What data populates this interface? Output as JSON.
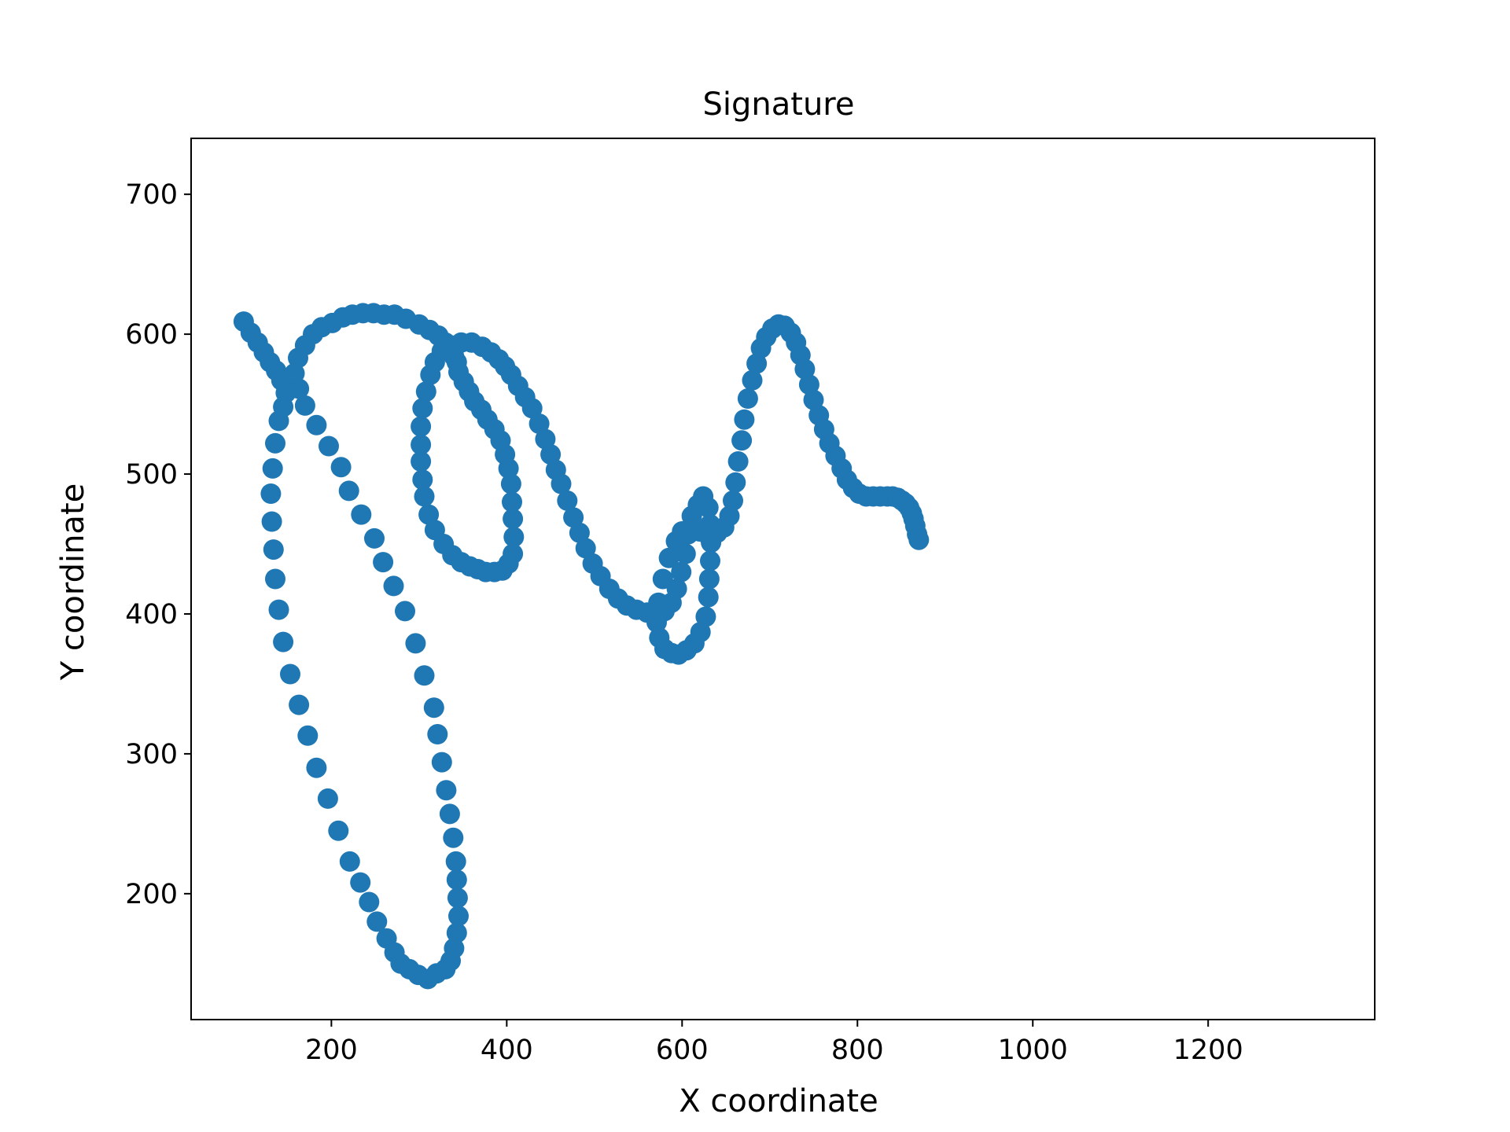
{
  "chart_data": {
    "type": "scatter",
    "title": "Signature",
    "xlabel": "X coordinate",
    "ylabel": "Y coordinate",
    "xlim": [
      40,
      1390
    ],
    "ylim": [
      110,
      740
    ],
    "grid": false,
    "x_ticks": [
      200,
      400,
      600,
      800,
      1000,
      1200
    ],
    "y_ticks": [
      200,
      300,
      400,
      500,
      600,
      700
    ],
    "series": [
      {
        "color": "#1f77b4",
        "points": [
          [
            100,
            609
          ],
          [
            108,
            601
          ],
          [
            116,
            594
          ],
          [
            123,
            587
          ],
          [
            130,
            580
          ],
          [
            137,
            574
          ],
          [
            143,
            567
          ],
          [
            148,
            558
          ],
          [
            145,
            548
          ],
          [
            140,
            538
          ],
          [
            136,
            522
          ],
          [
            133,
            504
          ],
          [
            131,
            486
          ],
          [
            132,
            466
          ],
          [
            134,
            446
          ],
          [
            136,
            425
          ],
          [
            140,
            403
          ],
          [
            145,
            380
          ],
          [
            153,
            357
          ],
          [
            163,
            335
          ],
          [
            173,
            313
          ],
          [
            183,
            290
          ],
          [
            196,
            268
          ],
          [
            208,
            245
          ],
          [
            221,
            223
          ],
          [
            233,
            208
          ],
          [
            243,
            194
          ],
          [
            252,
            180
          ],
          [
            263,
            168
          ],
          [
            272,
            158
          ],
          [
            279,
            150
          ],
          [
            289,
            146
          ],
          [
            299,
            142
          ],
          [
            310,
            139
          ],
          [
            320,
            143
          ],
          [
            330,
            146
          ],
          [
            336,
            152
          ],
          [
            340,
            161
          ],
          [
            343,
            172
          ],
          [
            345,
            184
          ],
          [
            344,
            197
          ],
          [
            343,
            210
          ],
          [
            342,
            223
          ],
          [
            339,
            240
          ],
          [
            335,
            257
          ],
          [
            331,
            274
          ],
          [
            326,
            294
          ],
          [
            321,
            314
          ],
          [
            317,
            333
          ],
          [
            306,
            356
          ],
          [
            296,
            379
          ],
          [
            284,
            402
          ],
          [
            271,
            420
          ],
          [
            259,
            437
          ],
          [
            249,
            454
          ],
          [
            234,
            471
          ],
          [
            220,
            488
          ],
          [
            211,
            505
          ],
          [
            197,
            520
          ],
          [
            183,
            535
          ],
          [
            170,
            549
          ],
          [
            163,
            561
          ],
          [
            158,
            572
          ],
          [
            162,
            583
          ],
          [
            170,
            592
          ],
          [
            179,
            600
          ],
          [
            189,
            605
          ],
          [
            201,
            608
          ],
          [
            213,
            612
          ],
          [
            224,
            614
          ],
          [
            236,
            615
          ],
          [
            248,
            615
          ],
          [
            260,
            614
          ],
          [
            272,
            614
          ],
          [
            285,
            611
          ],
          [
            300,
            607
          ],
          [
            312,
            603
          ],
          [
            322,
            599
          ],
          [
            330,
            594
          ],
          [
            336,
            589
          ],
          [
            340,
            584
          ],
          [
            343,
            580
          ],
          [
            345,
            573
          ],
          [
            351,
            566
          ],
          [
            357,
            559
          ],
          [
            363,
            552
          ],
          [
            371,
            546
          ],
          [
            378,
            539
          ],
          [
            386,
            532
          ],
          [
            393,
            524
          ],
          [
            398,
            514
          ],
          [
            402,
            504
          ],
          [
            405,
            493
          ],
          [
            406,
            480
          ],
          [
            407,
            468
          ],
          [
            408,
            455
          ],
          [
            407,
            443
          ],
          [
            402,
            436
          ],
          [
            395,
            431
          ],
          [
            386,
            430
          ],
          [
            376,
            430
          ],
          [
            367,
            432
          ],
          [
            358,
            434
          ],
          [
            348,
            437
          ],
          [
            338,
            442
          ],
          [
            328,
            450
          ],
          [
            318,
            460
          ],
          [
            311,
            471
          ],
          [
            306,
            484
          ],
          [
            304,
            496
          ],
          [
            302,
            509
          ],
          [
            302,
            521
          ],
          [
            302,
            534
          ],
          [
            304,
            547
          ],
          [
            308,
            559
          ],
          [
            313,
            571
          ],
          [
            318,
            580
          ],
          [
            326,
            588
          ],
          [
            336,
            592
          ],
          [
            348,
            594
          ],
          [
            360,
            594
          ],
          [
            372,
            591
          ],
          [
            382,
            587
          ],
          [
            391,
            582
          ],
          [
            398,
            577
          ],
          [
            405,
            571
          ],
          [
            413,
            563
          ],
          [
            421,
            555
          ],
          [
            429,
            547
          ],
          [
            437,
            536
          ],
          [
            444,
            525
          ],
          [
            450,
            514
          ],
          [
            456,
            503
          ],
          [
            462,
            493
          ],
          [
            469,
            481
          ],
          [
            476,
            469
          ],
          [
            483,
            458
          ],
          [
            490,
            447
          ],
          [
            498,
            436
          ],
          [
            507,
            427
          ],
          [
            517,
            418
          ],
          [
            527,
            411
          ],
          [
            537,
            406
          ],
          [
            548,
            403
          ],
          [
            560,
            401
          ],
          [
            570,
            400
          ],
          [
            580,
            402
          ],
          [
            588,
            408
          ],
          [
            594,
            418
          ],
          [
            599,
            430
          ],
          [
            604,
            443
          ],
          [
            607,
            457
          ],
          [
            611,
            470
          ],
          [
            618,
            478
          ],
          [
            624,
            484
          ],
          [
            630,
            476
          ],
          [
            632,
            464
          ],
          [
            633,
            451
          ],
          [
            632,
            438
          ],
          [
            631,
            425
          ],
          [
            630,
            412
          ],
          [
            627,
            398
          ],
          [
            621,
            387
          ],
          [
            614,
            379
          ],
          [
            605,
            374
          ],
          [
            596,
            371
          ],
          [
            588,
            372
          ],
          [
            580,
            375
          ],
          [
            574,
            383
          ],
          [
            571,
            394
          ],
          [
            573,
            408
          ],
          [
            578,
            425
          ],
          [
            585,
            440
          ],
          [
            593,
            452
          ],
          [
            600,
            459
          ],
          [
            609,
            461
          ],
          [
            620,
            459
          ],
          [
            630,
            456
          ],
          [
            640,
            458
          ],
          [
            648,
            462
          ],
          [
            654,
            470
          ],
          [
            658,
            481
          ],
          [
            661,
            494
          ],
          [
            664,
            509
          ],
          [
            668,
            524
          ],
          [
            671,
            539
          ],
          [
            675,
            554
          ],
          [
            680,
            567
          ],
          [
            685,
            579
          ],
          [
            690,
            590
          ],
          [
            696,
            598
          ],
          [
            703,
            604
          ],
          [
            710,
            607
          ],
          [
            717,
            606
          ],
          [
            724,
            601
          ],
          [
            730,
            594
          ],
          [
            735,
            585
          ],
          [
            740,
            575
          ],
          [
            745,
            564
          ],
          [
            750,
            553
          ],
          [
            756,
            542
          ],
          [
            762,
            532
          ],
          [
            768,
            522
          ],
          [
            775,
            513
          ],
          [
            782,
            504
          ],
          [
            788,
            496
          ],
          [
            795,
            490
          ],
          [
            802,
            486
          ],
          [
            810,
            484
          ],
          [
            818,
            484
          ],
          [
            826,
            484
          ],
          [
            834,
            484
          ],
          [
            840,
            484
          ],
          [
            846,
            483
          ],
          [
            851,
            481
          ],
          [
            855,
            479
          ],
          [
            859,
            476
          ],
          [
            862,
            472
          ],
          [
            864,
            468
          ],
          [
            866,
            463
          ],
          [
            868,
            457
          ],
          [
            870,
            453
          ]
        ]
      }
    ]
  }
}
